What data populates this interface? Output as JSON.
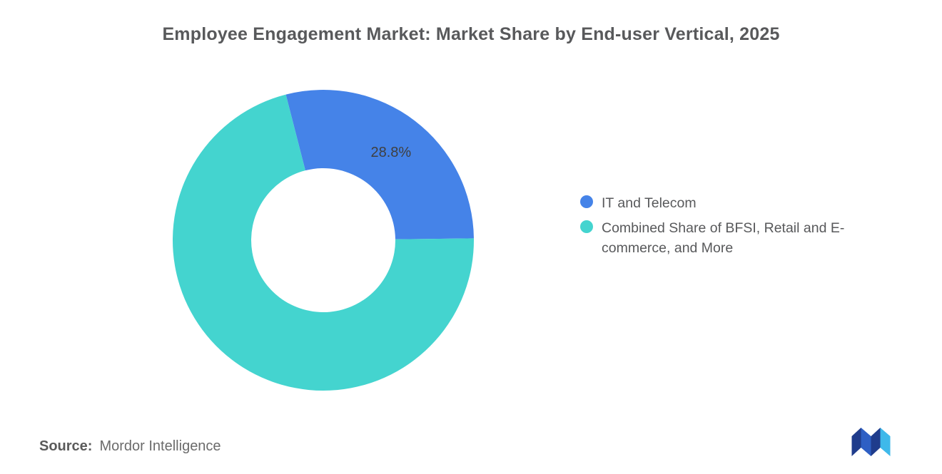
{
  "title": "Employee Engagement Market: Market Share by End-user Vertical, 2025",
  "source": {
    "label": "Source:",
    "value": "Mordor Intelligence"
  },
  "logo": {
    "name": "mordor-intelligence-logo",
    "color_dark": "#1f3c8c",
    "color_medium": "#2e5fc4",
    "color_light": "#3fb9ea"
  },
  "chart_data": {
    "type": "pie",
    "subtype": "donut",
    "title": "Employee Engagement Market: Market Share by End-user Vertical, 2025",
    "start_angle_deg_from_top": -14.4,
    "inner_radius": 101,
    "outer_radius": 211,
    "legend_position": "right",
    "segments": [
      {
        "name": "IT and Telecom",
        "value": 28.8,
        "color": "#4583e8",
        "data_label": "28.8%"
      },
      {
        "name": "Combined Share of BFSI, Retail and E-commerce, and More",
        "value": 71.2,
        "color": "#44d4cf",
        "data_label": ""
      }
    ]
  }
}
